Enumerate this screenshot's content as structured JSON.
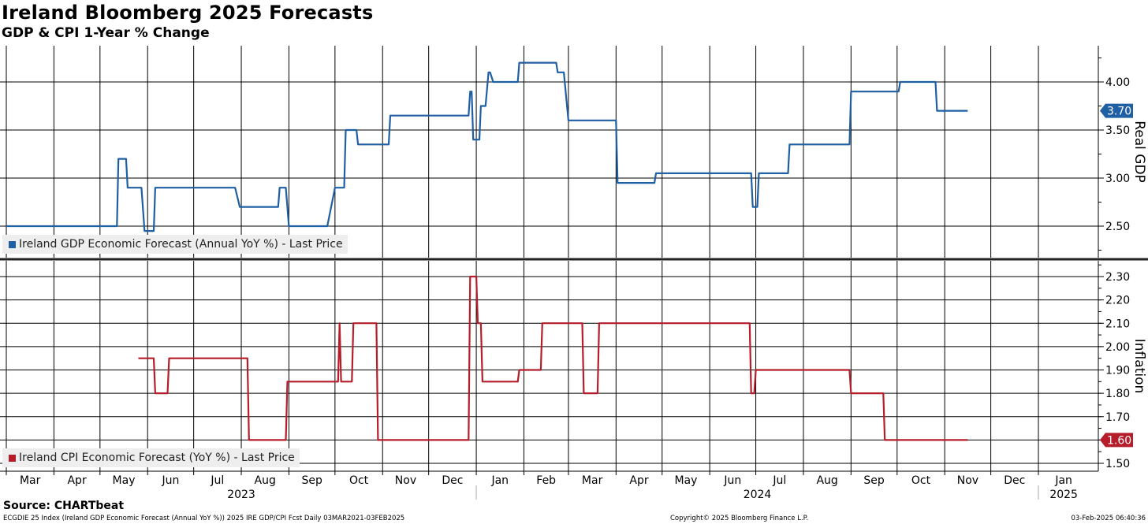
{
  "chart_data": {
    "title": "Ireland Bloomberg 2025 Forecasts",
    "subtitle": "GDP & CPI 1-Year % Change",
    "type": "line",
    "x_axis": {
      "months": [
        "Mar",
        "Apr",
        "May",
        "Jun",
        "Jul",
        "Aug",
        "Sep",
        "Oct",
        "Nov",
        "Dec",
        "Jan",
        "Feb",
        "Mar",
        "Apr",
        "May",
        "Jun",
        "Jul",
        "Aug",
        "Sep",
        "Oct",
        "Nov",
        "Dec",
        "Jan"
      ],
      "years": [
        "2023",
        "2024",
        "2025"
      ],
      "range": [
        "2023-03-01",
        "2025-02-03"
      ]
    },
    "panels": [
      {
        "ylabel": "Real GDP",
        "ylim": [
          2.2,
          4.35
        ],
        "ticks": [
          "4.00",
          "3.50",
          "3.00",
          "2.50"
        ],
        "last_value": "3.70",
        "color": "#1f5fa3",
        "legend": "Ireland GDP Economic Forecast (Annual YoY %) - Last Price",
        "series": {
          "name": "Ireland GDP Economic Forecast (Annual YoY %) - Last Price",
          "points": [
            [
              "2023-03-01",
              2.5
            ],
            [
              "2023-05-12",
              2.5
            ],
            [
              "2023-05-13",
              3.2
            ],
            [
              "2023-05-18",
              3.2
            ],
            [
              "2023-05-19",
              2.9
            ],
            [
              "2023-05-28",
              2.9
            ],
            [
              "2023-05-30",
              2.45
            ],
            [
              "2023-06-05",
              2.45
            ],
            [
              "2023-06-06",
              2.9
            ],
            [
              "2023-07-28",
              2.9
            ],
            [
              "2023-07-31",
              2.7
            ],
            [
              "2023-08-25",
              2.7
            ],
            [
              "2023-08-26",
              2.9
            ],
            [
              "2023-08-30",
              2.9
            ],
            [
              "2023-09-01",
              2.5
            ],
            [
              "2023-09-26",
              2.5
            ],
            [
              "2023-10-01",
              2.9
            ],
            [
              "2023-10-07",
              2.9
            ],
            [
              "2023-10-08",
              3.5
            ],
            [
              "2023-10-15",
              3.5
            ],
            [
              "2023-10-16",
              3.35
            ],
            [
              "2023-11-05",
              3.35
            ],
            [
              "2023-11-06",
              3.65
            ],
            [
              "2023-12-27",
              3.65
            ],
            [
              "2023-12-28",
              3.9
            ],
            [
              "2023-12-29",
              3.9
            ],
            [
              "2023-12-30",
              3.4
            ],
            [
              "2024-01-03",
              3.4
            ],
            [
              "2024-01-04",
              3.75
            ],
            [
              "2024-01-07",
              3.75
            ],
            [
              "2024-01-09",
              4.1
            ],
            [
              "2024-01-10",
              4.1
            ],
            [
              "2024-01-12",
              4.0
            ],
            [
              "2024-01-28",
              4.0
            ],
            [
              "2024-01-29",
              4.2
            ],
            [
              "2024-02-22",
              4.2
            ],
            [
              "2024-02-23",
              4.1
            ],
            [
              "2024-02-27",
              4.1
            ],
            [
              "2024-03-01",
              3.6
            ],
            [
              "2024-04-01",
              3.6
            ],
            [
              "2024-04-02",
              2.95
            ],
            [
              "2024-04-26",
              2.95
            ],
            [
              "2024-04-27",
              3.05
            ],
            [
              "2024-06-28",
              3.05
            ],
            [
              "2024-06-29",
              2.7
            ],
            [
              "2024-07-02",
              2.7
            ],
            [
              "2024-07-03",
              3.05
            ],
            [
              "2024-07-22",
              3.05
            ],
            [
              "2024-07-23",
              3.35
            ],
            [
              "2024-08-31",
              3.35
            ],
            [
              "2024-09-01",
              3.9
            ],
            [
              "2024-10-02",
              3.9
            ],
            [
              "2024-10-03",
              4.0
            ],
            [
              "2024-10-26",
              4.0
            ],
            [
              "2024-10-27",
              3.7
            ],
            [
              "2024-11-16",
              3.7
            ]
          ]
        }
      },
      {
        "ylabel": "Inflation",
        "ylim": [
          1.45,
          2.35
        ],
        "ticks": [
          "2.30",
          "2.20",
          "2.10",
          "2.00",
          "1.90",
          "1.80",
          "1.70",
          "1.60",
          "1.50"
        ],
        "last_value": "1.60",
        "color": "#b51d2a",
        "legend": "Ireland CPI Economic Forecast (YoY %) - Last Price",
        "series": {
          "name": "Ireland CPI Economic Forecast (YoY %) - Last Price",
          "points": [
            [
              "2023-05-26",
              1.95
            ],
            [
              "2023-06-05",
              1.95
            ],
            [
              "2023-06-06",
              1.8
            ],
            [
              "2023-06-14",
              1.8
            ],
            [
              "2023-06-15",
              1.95
            ],
            [
              "2023-08-05",
              1.95
            ],
            [
              "2023-08-06",
              1.6
            ],
            [
              "2023-08-30",
              1.6
            ],
            [
              "2023-08-31",
              1.85
            ],
            [
              "2023-10-03",
              1.85
            ],
            [
              "2023-10-04",
              2.1
            ],
            [
              "2023-10-05",
              1.85
            ],
            [
              "2023-10-12",
              1.85
            ],
            [
              "2023-10-13",
              2.1
            ],
            [
              "2023-10-28",
              2.1
            ],
            [
              "2023-10-29",
              1.6
            ],
            [
              "2023-12-27",
              1.6
            ],
            [
              "2023-12-28",
              2.3
            ],
            [
              "2024-01-01",
              2.3
            ],
            [
              "2024-01-02",
              2.1
            ],
            [
              "2024-01-04",
              2.1
            ],
            [
              "2024-01-05",
              1.85
            ],
            [
              "2024-01-28",
              1.85
            ],
            [
              "2024-01-29",
              1.9
            ],
            [
              "2024-02-12",
              1.9
            ],
            [
              "2024-02-13",
              2.1
            ],
            [
              "2024-03-10",
              2.1
            ],
            [
              "2024-03-11",
              1.8
            ],
            [
              "2024-03-20",
              1.8
            ],
            [
              "2024-03-21",
              2.1
            ],
            [
              "2024-06-27",
              2.1
            ],
            [
              "2024-06-28",
              1.8
            ],
            [
              "2024-06-30",
              1.8
            ],
            [
              "2024-07-01",
              1.9
            ],
            [
              "2024-08-31",
              1.9
            ],
            [
              "2024-09-01",
              1.8
            ],
            [
              "2024-09-22",
              1.8
            ],
            [
              "2024-09-23",
              1.6
            ],
            [
              "2024-11-16",
              1.6
            ]
          ]
        }
      }
    ],
    "grid": true
  },
  "source": "Source: CHARTbeat",
  "footer": {
    "left": "ECGDIE 25 Index (Ireland GDP Economic Forecast (Annual YoY %)) 2025 IRE GDP/CPI Fcst  Daily 03MAR2021-03FEB2025",
    "center": "Copyright© 2025 Bloomberg Finance L.P.",
    "right": "03-Feb-2025 06:40:36"
  }
}
